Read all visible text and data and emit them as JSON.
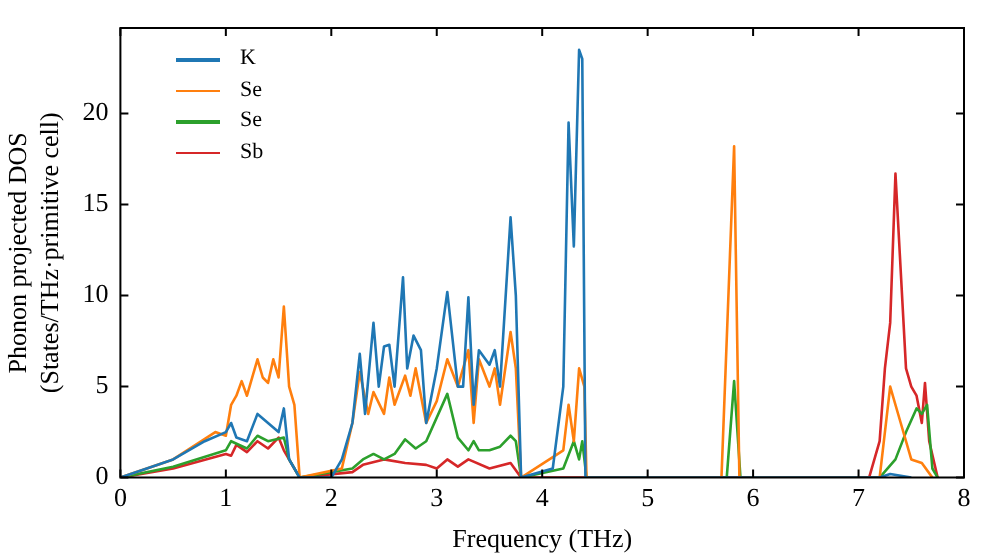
{
  "chart_data": {
    "type": "line",
    "xlabel": "Frequency (THz)",
    "ylabel": "Phonon projected DOS\n(States/THz·primitive cell)",
    "xlim": [
      0,
      8
    ],
    "xticks": [
      0,
      1,
      2,
      3,
      4,
      5,
      6,
      7,
      8
    ],
    "ylim": [
      0,
      24.7
    ],
    "yticks": [
      0,
      5,
      10,
      15,
      20
    ],
    "grid": false,
    "legend": "top left",
    "marker": "none",
    "line_style": "solid",
    "series": [
      {
        "name": "K",
        "color": "#1f77b4",
        "x": [
          0,
          0.5,
          0.8,
          1.0,
          1.05,
          1.1,
          1.2,
          1.3,
          1.4,
          1.5,
          1.55,
          1.6,
          1.7,
          2.0,
          2.1,
          2.2,
          2.27,
          2.32,
          2.4,
          2.45,
          2.5,
          2.55,
          2.6,
          2.68,
          2.72,
          2.78,
          2.85,
          2.9,
          3.0,
          3.1,
          3.2,
          3.25,
          3.3,
          3.35,
          3.4,
          3.5,
          3.55,
          3.6,
          3.7,
          3.75,
          3.8,
          4.1,
          4.2,
          4.25,
          4.3,
          4.35,
          4.38,
          4.41,
          7.2,
          7.3,
          7.5
        ],
        "values": [
          0,
          1,
          2,
          2.5,
          3,
          2.2,
          2,
          3.5,
          3,
          2.5,
          3.8,
          1,
          0,
          0,
          1,
          3,
          6.8,
          3.5,
          8.5,
          5,
          7.2,
          7.3,
          5,
          11,
          6,
          7.8,
          7,
          3,
          6,
          10.2,
          5,
          5,
          9.9,
          4,
          7,
          6.2,
          7,
          5,
          14.3,
          10,
          0,
          0.5,
          5,
          19.5,
          12.7,
          23.5,
          23,
          0,
          0,
          0.2,
          0
        ]
      },
      {
        "name": "Se",
        "color": "#ff7f0e",
        "x": [
          0,
          0.5,
          0.9,
          1.0,
          1.05,
          1.1,
          1.15,
          1.2,
          1.3,
          1.35,
          1.4,
          1.45,
          1.5,
          1.55,
          1.6,
          1.65,
          1.7,
          2.1,
          2.2,
          2.27,
          2.35,
          2.4,
          2.5,
          2.55,
          2.6,
          2.7,
          2.75,
          2.8,
          2.9,
          3.0,
          3.1,
          3.2,
          3.3,
          3.35,
          3.4,
          3.5,
          3.55,
          3.6,
          3.7,
          3.75,
          3.8,
          4.2,
          4.25,
          4.3,
          4.35,
          4.4,
          4.42,
          5.7,
          5.82,
          5.87,
          7.2,
          7.3,
          7.4,
          7.5,
          7.6,
          7.7
        ],
        "values": [
          0,
          1,
          2.5,
          2.3,
          4,
          4.5,
          5.3,
          4.5,
          6.5,
          5.5,
          5.2,
          6.5,
          5.5,
          9.4,
          5,
          4,
          0,
          0.5,
          3,
          5.8,
          3.5,
          4.7,
          3.5,
          5.5,
          4,
          5.6,
          4.5,
          6,
          3,
          4.2,
          6.5,
          5,
          7,
          3,
          6.5,
          5,
          6,
          4,
          8,
          6,
          0,
          1.5,
          4,
          2,
          6,
          5,
          0,
          0,
          18.2,
          0,
          0,
          5,
          3,
          1,
          0.8,
          0
        ]
      },
      {
        "name": "Se",
        "color": "#2ca02c",
        "x": [
          0,
          0.5,
          1.0,
          1.05,
          1.2,
          1.3,
          1.4,
          1.55,
          1.6,
          1.7,
          2.2,
          2.3,
          2.4,
          2.5,
          2.6,
          2.7,
          2.8,
          2.9,
          3.1,
          3.2,
          3.3,
          3.35,
          3.4,
          3.5,
          3.6,
          3.7,
          3.75,
          3.8,
          4.2,
          4.3,
          4.35,
          4.38,
          4.42,
          5.75,
          5.82,
          5.88,
          7.2,
          7.35,
          7.45,
          7.55,
          7.6,
          7.65,
          7.7,
          7.75
        ],
        "values": [
          0,
          0.6,
          1.5,
          2,
          1.6,
          2.3,
          2,
          2.2,
          1,
          0,
          0.5,
          1,
          1.3,
          1,
          1.3,
          2.1,
          1.6,
          2,
          4.6,
          2.2,
          1.5,
          2,
          1.5,
          1.5,
          1.7,
          2.3,
          2,
          0,
          0.5,
          2,
          1,
          2,
          0,
          0,
          5.3,
          0,
          0,
          1,
          2.5,
          3.8,
          3.5,
          4,
          0.5,
          0
        ]
      },
      {
        "name": "Sb",
        "color": "#d62728",
        "x": [
          0,
          0.5,
          1.0,
          1.05,
          1.1,
          1.2,
          1.3,
          1.4,
          1.5,
          1.55,
          1.65,
          1.7,
          2.2,
          2.3,
          2.5,
          2.7,
          2.9,
          3.0,
          3.1,
          3.2,
          3.3,
          3.5,
          3.7,
          3.8,
          7.1,
          7.2,
          7.25,
          7.3,
          7.35,
          7.45,
          7.5,
          7.55,
          7.6,
          7.63,
          7.67,
          7.75
        ],
        "values": [
          0,
          0.5,
          1.3,
          1.2,
          1.8,
          1.4,
          2,
          1.6,
          2.2,
          1.5,
          0.5,
          0,
          0.3,
          0.7,
          1,
          0.8,
          0.7,
          0.5,
          1,
          0.6,
          1,
          0.5,
          0.8,
          0,
          0,
          2,
          6,
          8.5,
          16.7,
          6,
          5,
          4.5,
          3,
          5.2,
          2,
          0
        ]
      }
    ]
  }
}
